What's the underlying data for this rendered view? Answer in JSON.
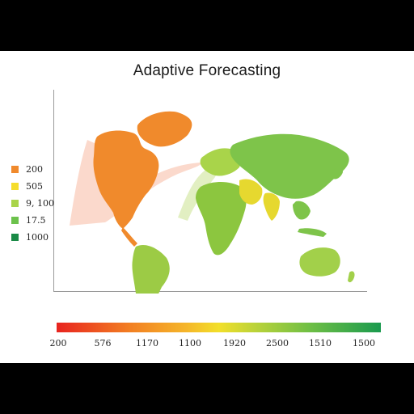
{
  "title": "Adaptive Forecasting",
  "legend": [
    {
      "label": "200",
      "color": "#f08a2c"
    },
    {
      "label": "505",
      "color": "#f5dd2c"
    },
    {
      "label": "9, 100",
      "color": "#a9d44a"
    },
    {
      "label": "17.5",
      "color": "#6cc24c"
    },
    {
      "label": "1000",
      "color": "#1a8a46"
    }
  ],
  "color_scale": {
    "labels": [
      "200",
      "576",
      "1170",
      "1100",
      "1920",
      "2500",
      "1510",
      "1500"
    ],
    "colors": [
      "#e8231f",
      "#f27d22",
      "#f2df2a",
      "#6fbf45",
      "#1a9a4e"
    ]
  },
  "map": {
    "regions": [
      {
        "name": "North America",
        "color": "#f08a2c"
      },
      {
        "name": "Greenland",
        "color": "#f08a2c"
      },
      {
        "name": "South America",
        "color": "#9ccb45"
      },
      {
        "name": "Europe",
        "color": "#a9d44a"
      },
      {
        "name": "Africa",
        "color": "#8cc63f"
      },
      {
        "name": "Asia",
        "color": "#7ec44a"
      },
      {
        "name": "Australia",
        "color": "#a2d04a"
      },
      {
        "name": "Middle East",
        "color": "#e6d82f"
      }
    ]
  }
}
